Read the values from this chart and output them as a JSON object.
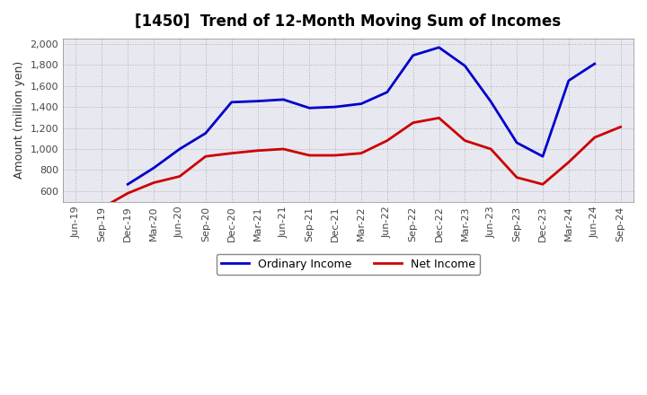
{
  "title": "[1450]  Trend of 12-Month Moving Sum of Incomes",
  "ylabel": "Amount (million yen)",
  "ylim": [
    500,
    2050
  ],
  "yticks": [
    600,
    800,
    1000,
    1200,
    1400,
    1600,
    1800,
    2000
  ],
  "x_labels": [
    "Jun-19",
    "Sep-19",
    "Dec-19",
    "Mar-20",
    "Jun-20",
    "Sep-20",
    "Dec-20",
    "Mar-21",
    "Jun-21",
    "Sep-21",
    "Dec-21",
    "Mar-22",
    "Jun-22",
    "Sep-22",
    "Dec-22",
    "Mar-23",
    "Jun-23",
    "Sep-23",
    "Dec-23",
    "Mar-24",
    "Jun-24",
    "Sep-24"
  ],
  "ordinary_income": [
    null,
    null,
    665,
    820,
    1000,
    1150,
    1445,
    1455,
    1470,
    1390,
    1400,
    1430,
    1540,
    1890,
    1965,
    1790,
    1450,
    1060,
    930,
    1650,
    1810,
    null
  ],
  "net_income": [
    null,
    440,
    580,
    680,
    740,
    930,
    960,
    985,
    1000,
    940,
    940,
    960,
    1080,
    1250,
    1295,
    1080,
    1000,
    730,
    665,
    875,
    1110,
    1210
  ],
  "ordinary_color": "#0000CC",
  "net_color": "#CC0000",
  "background_color": "#FFFFFF",
  "plot_bg_color": "#E8E8F0",
  "grid_color": "#AAAAAA",
  "title_fontsize": 12,
  "axis_fontsize": 8,
  "legend_labels": [
    "Ordinary Income",
    "Net Income"
  ]
}
